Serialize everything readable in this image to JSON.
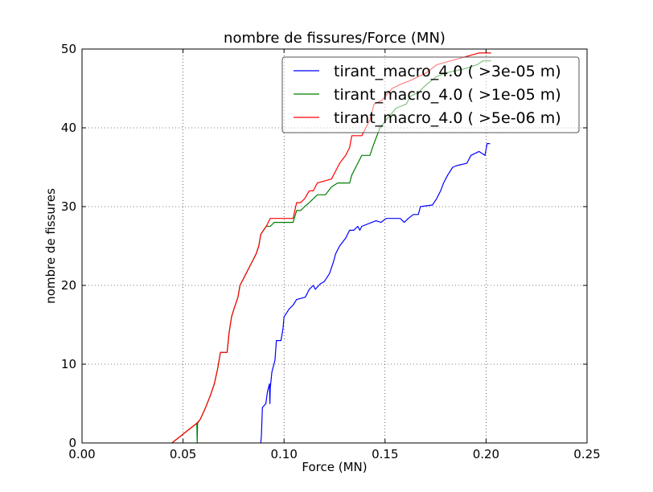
{
  "chart_data": {
    "type": "line",
    "title": "nombre de fissures/Force (MN)",
    "xlabel": "Force (MN)",
    "ylabel": "nombre de fissures",
    "xlim": [
      0.0,
      0.25
    ],
    "ylim": [
      0,
      50
    ],
    "xticks": [
      "0.00",
      "0.05",
      "0.10",
      "0.15",
      "0.20",
      "0.25"
    ],
    "yticks": [
      "0",
      "10",
      "20",
      "30",
      "40",
      "50"
    ],
    "xtick_values": [
      0.0,
      0.05,
      0.1,
      0.15,
      0.2,
      0.25
    ],
    "ytick_values": [
      0,
      10,
      20,
      30,
      40,
      50
    ],
    "grid": true,
    "legend_position": "top-right",
    "series": [
      {
        "name": "tirant_macro_4.0 ( >3e-05 m)",
        "color": "#0000ff",
        "points": [
          [
            0.0885,
            0
          ],
          [
            0.0888,
            1
          ],
          [
            0.089,
            2.5
          ],
          [
            0.0893,
            4.5
          ],
          [
            0.091,
            5
          ],
          [
            0.0918,
            6.5
          ],
          [
            0.0928,
            7.5
          ],
          [
            0.093,
            5
          ],
          [
            0.0932,
            7
          ],
          [
            0.094,
            9
          ],
          [
            0.0955,
            10.5
          ],
          [
            0.0962,
            13
          ],
          [
            0.0985,
            13
          ],
          [
            0.0995,
            14.5
          ],
          [
            0.1,
            16
          ],
          [
            0.1025,
            17
          ],
          [
            0.1045,
            17.5
          ],
          [
            0.1062,
            18.2
          ],
          [
            0.1105,
            18.5
          ],
          [
            0.1125,
            19.5
          ],
          [
            0.1145,
            20
          ],
          [
            0.1155,
            19.5
          ],
          [
            0.118,
            20.2
          ],
          [
            0.12,
            20.5
          ],
          [
            0.1225,
            21.5
          ],
          [
            0.1245,
            23
          ],
          [
            0.1255,
            24
          ],
          [
            0.1275,
            25
          ],
          [
            0.1305,
            26
          ],
          [
            0.1325,
            27
          ],
          [
            0.1345,
            27
          ],
          [
            0.1365,
            27.5
          ],
          [
            0.1375,
            27
          ],
          [
            0.1385,
            27.5
          ],
          [
            0.1435,
            28
          ],
          [
            0.1455,
            28.2
          ],
          [
            0.148,
            28
          ],
          [
            0.1505,
            28.5
          ],
          [
            0.1575,
            28.5
          ],
          [
            0.1595,
            28
          ],
          [
            0.1615,
            28.5
          ],
          [
            0.164,
            29
          ],
          [
            0.1665,
            29
          ],
          [
            0.1675,
            30
          ],
          [
            0.1735,
            30.2
          ],
          [
            0.1755,
            31
          ],
          [
            0.1775,
            32
          ],
          [
            0.179,
            33
          ],
          [
            0.181,
            34
          ],
          [
            0.1835,
            35
          ],
          [
            0.1855,
            35.2
          ],
          [
            0.1905,
            35.5
          ],
          [
            0.1925,
            36.5
          ],
          [
            0.1965,
            37
          ],
          [
            0.1995,
            36.5
          ],
          [
            0.2005,
            38
          ],
          [
            0.202,
            38
          ]
        ]
      },
      {
        "name": "tirant_macro_4.0 ( >1e-05 m)",
        "color": "#008000",
        "points": [
          [
            0.0445,
            0
          ],
          [
            0.0568,
            2.5
          ],
          [
            0.057,
            0
          ],
          [
            0.0572,
            2.5
          ],
          [
            0.0585,
            3
          ],
          [
            0.0612,
            4.5
          ],
          [
            0.0635,
            6
          ],
          [
            0.0655,
            7.5
          ],
          [
            0.0672,
            9.5
          ],
          [
            0.0685,
            11.5
          ],
          [
            0.0718,
            11.5
          ],
          [
            0.0728,
            14
          ],
          [
            0.074,
            16
          ],
          [
            0.0752,
            17
          ],
          [
            0.0772,
            18.5
          ],
          [
            0.0782,
            20
          ],
          [
            0.0802,
            21
          ],
          [
            0.0822,
            22
          ],
          [
            0.0842,
            23
          ],
          [
            0.0862,
            24
          ],
          [
            0.0875,
            25
          ],
          [
            0.0885,
            26.5
          ],
          [
            0.0912,
            27.5
          ],
          [
            0.0932,
            27.5
          ],
          [
            0.0952,
            28
          ],
          [
            0.1045,
            28
          ],
          [
            0.1062,
            29.5
          ],
          [
            0.1082,
            29.5
          ],
          [
            0.1102,
            30
          ],
          [
            0.1125,
            30.5
          ],
          [
            0.1165,
            31.5
          ],
          [
            0.1205,
            31.5
          ],
          [
            0.1235,
            32.5
          ],
          [
            0.1265,
            33
          ],
          [
            0.1325,
            33
          ],
          [
            0.1335,
            34
          ],
          [
            0.1355,
            35
          ],
          [
            0.1385,
            36.5
          ],
          [
            0.1425,
            36.5
          ],
          [
            0.1445,
            38
          ],
          [
            0.1475,
            40
          ],
          [
            0.1505,
            41
          ],
          [
            0.1555,
            42.5
          ],
          [
            0.1605,
            43
          ],
          [
            0.1625,
            44
          ],
          [
            0.1665,
            44.5
          ],
          [
            0.1705,
            45.5
          ],
          [
            0.1755,
            46.5
          ],
          [
            0.1805,
            47
          ],
          [
            0.1895,
            47.5
          ],
          [
            0.1955,
            48
          ],
          [
            0.1985,
            48.5
          ],
          [
            0.2025,
            48.5
          ]
        ]
      },
      {
        "name": "tirant_macro_4.0 ( >5e-06 m)",
        "color": "#ff0000",
        "points": [
          [
            0.0445,
            0
          ],
          [
            0.0568,
            2.5
          ],
          [
            0.0585,
            3
          ],
          [
            0.0612,
            4.5
          ],
          [
            0.0635,
            6
          ],
          [
            0.0655,
            7.5
          ],
          [
            0.0672,
            9.5
          ],
          [
            0.0685,
            11.5
          ],
          [
            0.0718,
            11.5
          ],
          [
            0.0728,
            14
          ],
          [
            0.074,
            16
          ],
          [
            0.0752,
            17
          ],
          [
            0.0772,
            18.5
          ],
          [
            0.0782,
            20
          ],
          [
            0.0802,
            21
          ],
          [
            0.0822,
            22
          ],
          [
            0.0842,
            23
          ],
          [
            0.0862,
            24
          ],
          [
            0.0875,
            25
          ],
          [
            0.0885,
            26.5
          ],
          [
            0.0912,
            27.5
          ],
          [
            0.0932,
            28.5
          ],
          [
            0.1045,
            28.5
          ],
          [
            0.1062,
            30.5
          ],
          [
            0.1082,
            30.5
          ],
          [
            0.1102,
            31
          ],
          [
            0.1125,
            32
          ],
          [
            0.1145,
            32
          ],
          [
            0.1165,
            33
          ],
          [
            0.1235,
            33.5
          ],
          [
            0.1255,
            34.5
          ],
          [
            0.1275,
            35.5
          ],
          [
            0.1305,
            36.5
          ],
          [
            0.1325,
            37.5
          ],
          [
            0.1335,
            39
          ],
          [
            0.1385,
            39
          ],
          [
            0.1405,
            40
          ],
          [
            0.1425,
            41
          ],
          [
            0.1445,
            43
          ],
          [
            0.1485,
            43.5
          ],
          [
            0.1535,
            45
          ],
          [
            0.1575,
            45.5
          ],
          [
            0.1625,
            46
          ],
          [
            0.1665,
            46.5
          ],
          [
            0.1705,
            47
          ],
          [
            0.1755,
            48
          ],
          [
            0.1825,
            48.5
          ],
          [
            0.1895,
            49
          ],
          [
            0.1965,
            49.5
          ],
          [
            0.2025,
            49.5
          ]
        ]
      }
    ]
  }
}
